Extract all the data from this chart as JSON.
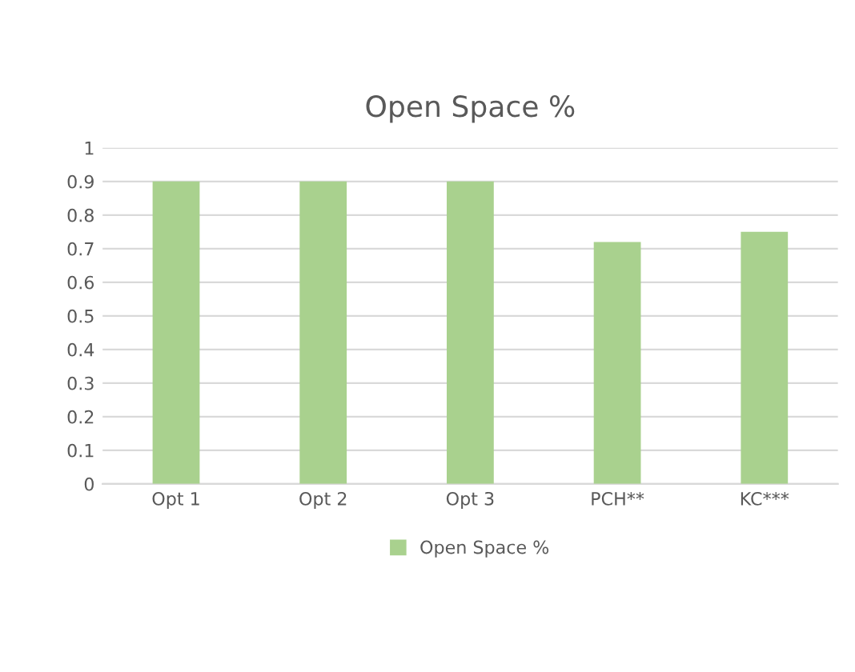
{
  "chart_data": {
    "type": "bar",
    "title": "Open Space %",
    "categories": [
      "Opt 1",
      "Opt 2",
      "Opt 3",
      "PCH**",
      "KC***"
    ],
    "series": [
      {
        "name": "Open Space %",
        "color": "#a9d18e",
        "values": [
          0.9,
          0.9,
          0.9,
          0.72,
          0.75
        ]
      }
    ],
    "ylim": [
      0,
      1
    ],
    "yticks": [
      0,
      0.1,
      0.2,
      0.3,
      0.4,
      0.5,
      0.6,
      0.7,
      0.8,
      0.9,
      1
    ],
    "grid": "y",
    "legend": "bottom"
  }
}
